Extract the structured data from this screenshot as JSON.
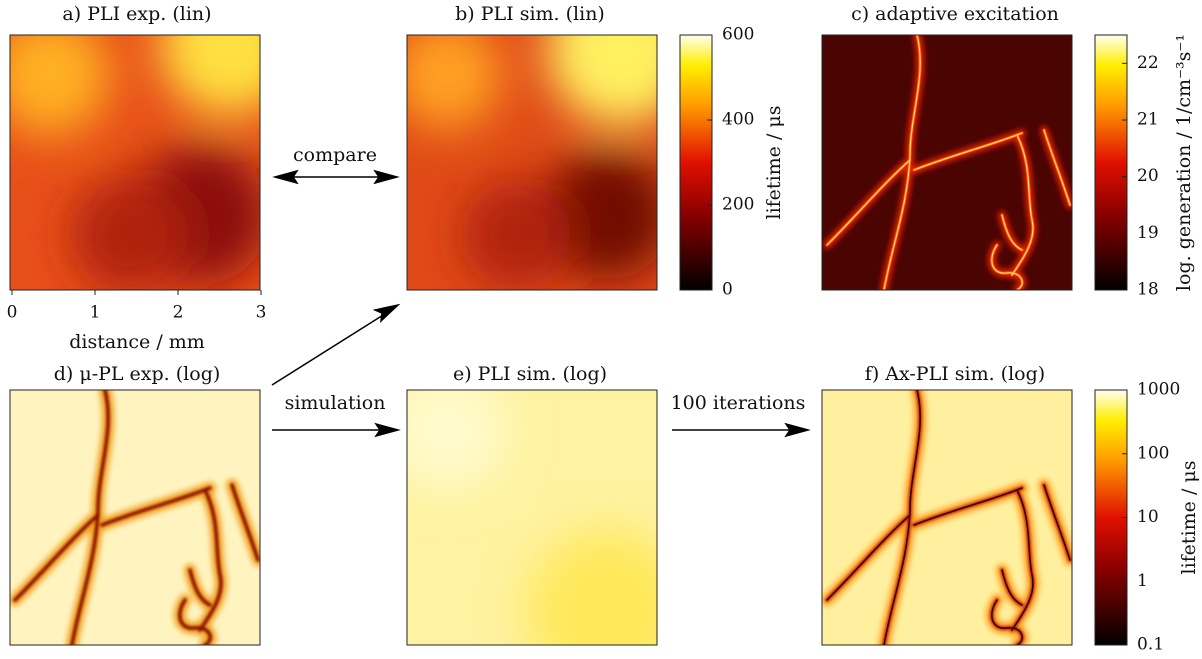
{
  "panels": [
    {
      "title": "a) PLI exp. (lin)"
    },
    {
      "title": "b) PLI sim. (lin)"
    },
    {
      "title": "c) adaptive excitation"
    },
    {
      "title": "d)  μ-PL exp. (log)"
    },
    {
      "title": "e) PLI sim. (log)"
    },
    {
      "title": "f) Ax-PLI sim. (log)"
    }
  ],
  "x_axis": {
    "label": "distance / mm",
    "lim": [
      0,
      3
    ],
    "ticks": [
      0,
      1,
      2,
      3
    ]
  },
  "colorbars": [
    {
      "label": "lifetime / μs",
      "lim": [
        0,
        600
      ],
      "ticks": [
        0,
        200,
        400,
        600
      ],
      "log_scale": false
    },
    {
      "label": "log. generation / 1/cm⁻³s⁻¹",
      "lim": [
        18,
        22.5
      ],
      "ticks": [
        18,
        19,
        20,
        21,
        22
      ],
      "log_scale": false
    },
    {
      "label": "lifetime / μs",
      "lim": [
        0.1,
        1000
      ],
      "ticks": [
        0.1,
        1,
        10,
        100,
        1000
      ],
      "log_scale": true
    }
  ],
  "arrows": [
    {
      "label": "compare"
    },
    {
      "label": "simulation"
    },
    {
      "label": "100 iterations"
    }
  ]
}
